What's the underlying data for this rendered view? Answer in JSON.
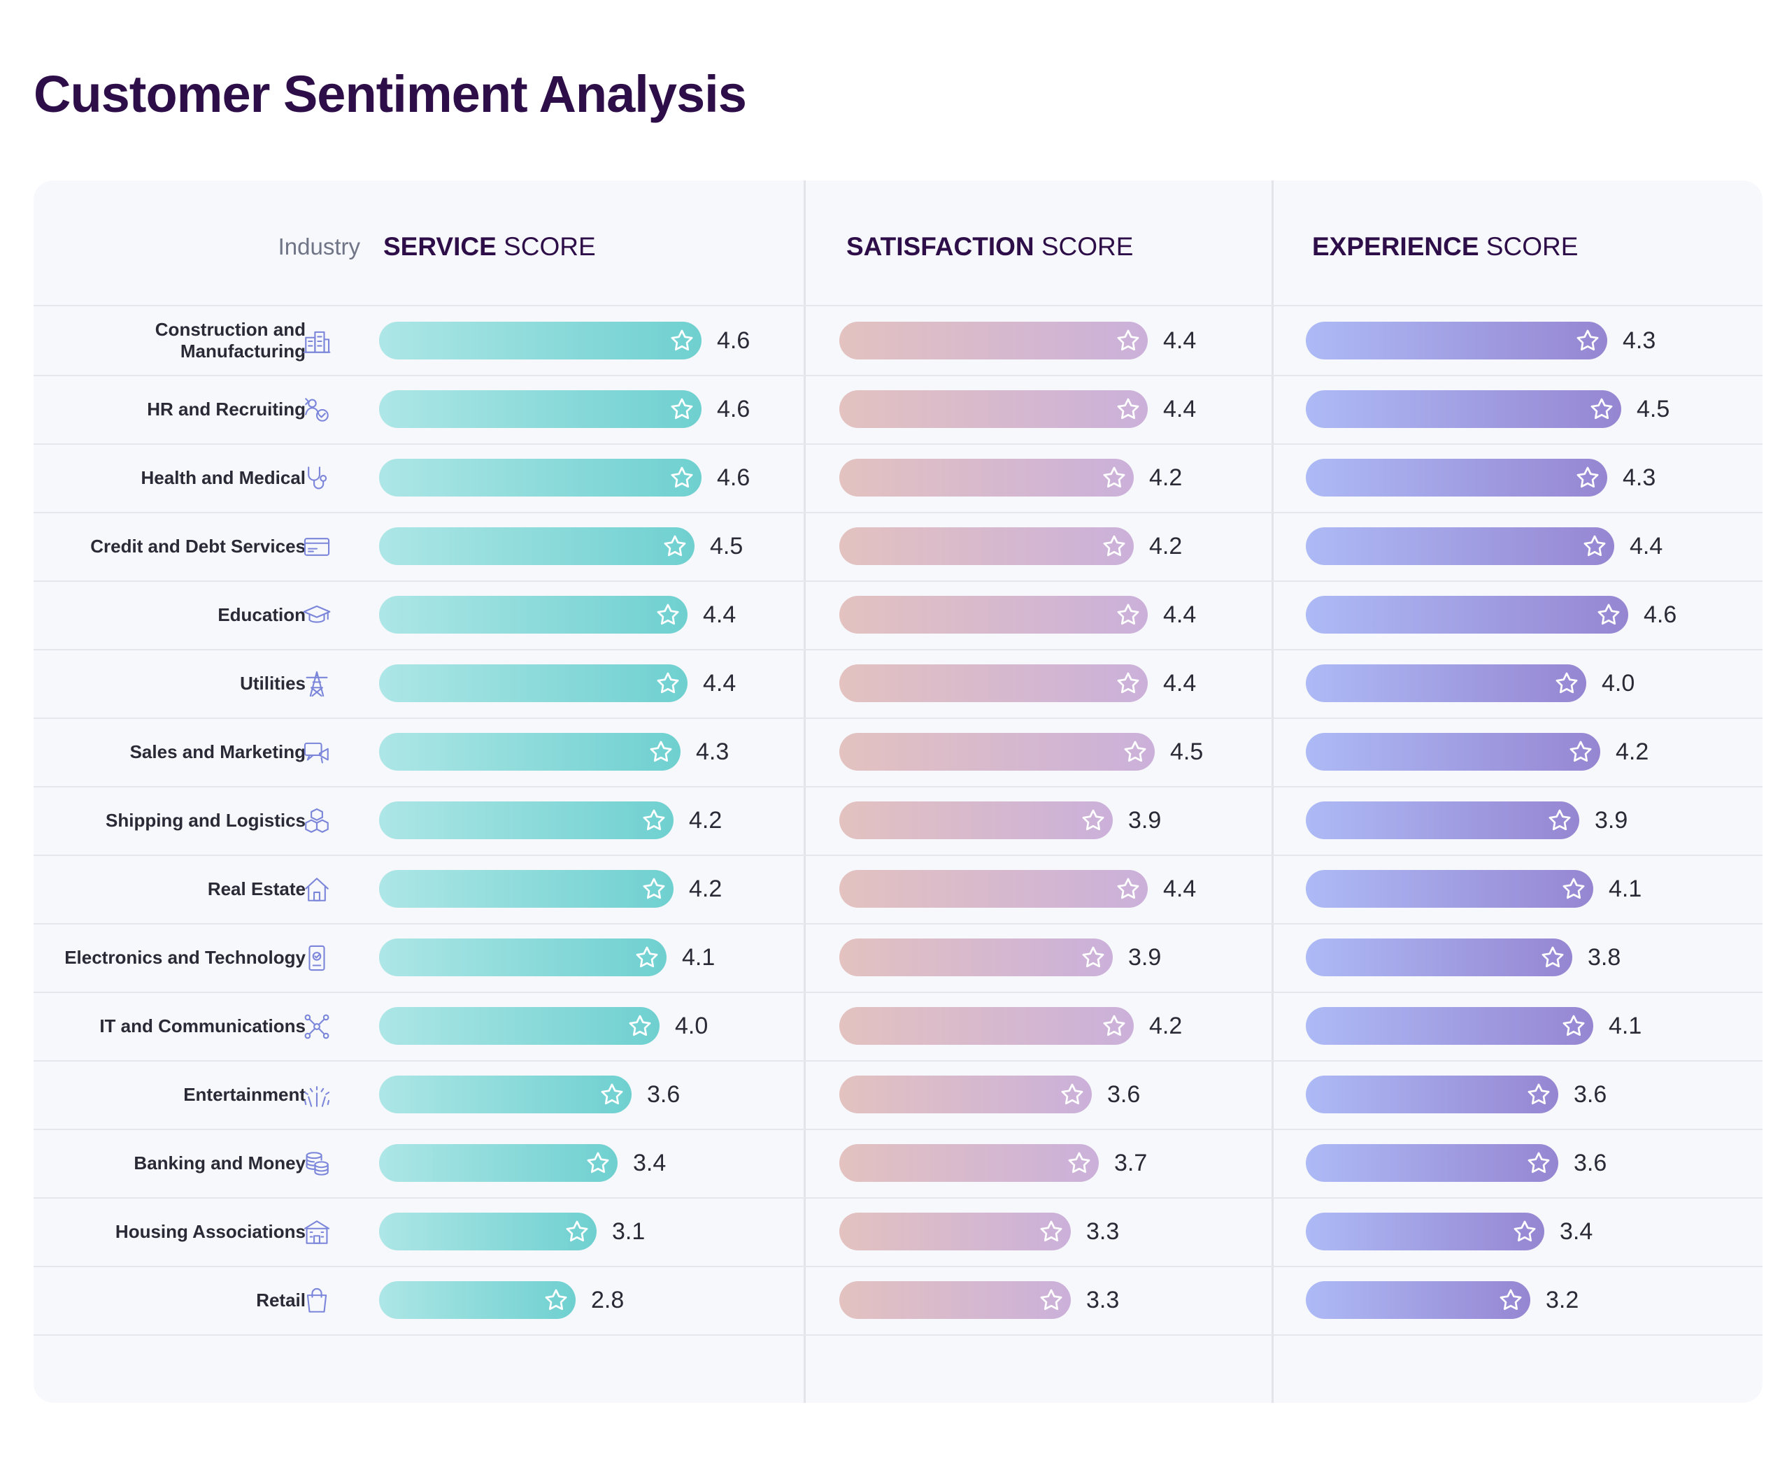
{
  "page": {
    "title": "Customer Sentiment Analysis"
  },
  "chart_data": {
    "type": "bar",
    "title": "Customer Sentiment Analysis",
    "category_header": "Industry",
    "series_headers": [
      {
        "bold": "SERVICE",
        "light": " SCORE"
      },
      {
        "bold": "SATISFACTION",
        "light": " SCORE"
      },
      {
        "bold": "EXPERIENCE",
        "light": " SCORE"
      }
    ],
    "categories": [
      "Construction and Manufacturing",
      "HR and Recruiting",
      "Health and Medical",
      "Credit and Debt Services",
      "Education",
      "Utilities",
      "Sales and Marketing",
      "Shipping and Logistics",
      "Real Estate",
      "Electronics and Technology",
      "IT and Communications",
      "Entertainment",
      "Banking and Money",
      "Housing Associations",
      "Retail"
    ],
    "category_icons": [
      "building-icon",
      "recruiting-icon",
      "stethoscope-icon",
      "credit-card-icon",
      "graduation-cap-icon",
      "power-tower-icon",
      "megaphone-icon",
      "boxes-icon",
      "house-icon",
      "device-icon",
      "network-icon",
      "fireworks-icon",
      "coins-icon",
      "apartment-icon",
      "shopping-bag-icon"
    ],
    "series": [
      {
        "name": "SERVICE SCORE",
        "values": [
          "4.6",
          "4.6",
          "4.6",
          "4.5",
          "4.4",
          "4.4",
          "4.3",
          "4.2",
          "4.2",
          "4.1",
          "4.0",
          "3.6",
          "3.4",
          "3.1",
          "2.8"
        ]
      },
      {
        "name": "SATISFACTION SCORE",
        "values": [
          "4.4",
          "4.4",
          "4.2",
          "4.2",
          "4.4",
          "4.4",
          "4.5",
          "3.9",
          "4.4",
          "3.9",
          "4.2",
          "3.6",
          "3.7",
          "3.3",
          "3.3"
        ]
      },
      {
        "name": "EXPERIENCE SCORE",
        "values": [
          "4.3",
          "4.5",
          "4.3",
          "4.4",
          "4.6",
          "4.0",
          "4.2",
          "3.9",
          "4.1",
          "3.8",
          "4.1",
          "3.6",
          "3.6",
          "3.4",
          "3.2"
        ]
      }
    ],
    "xlim": [
      0,
      5
    ],
    "colors": {
      "service": "#6fd0d0",
      "satisfaction": "#cbb0da",
      "experience": "#9686d2",
      "title": "#2e0e48"
    }
  }
}
